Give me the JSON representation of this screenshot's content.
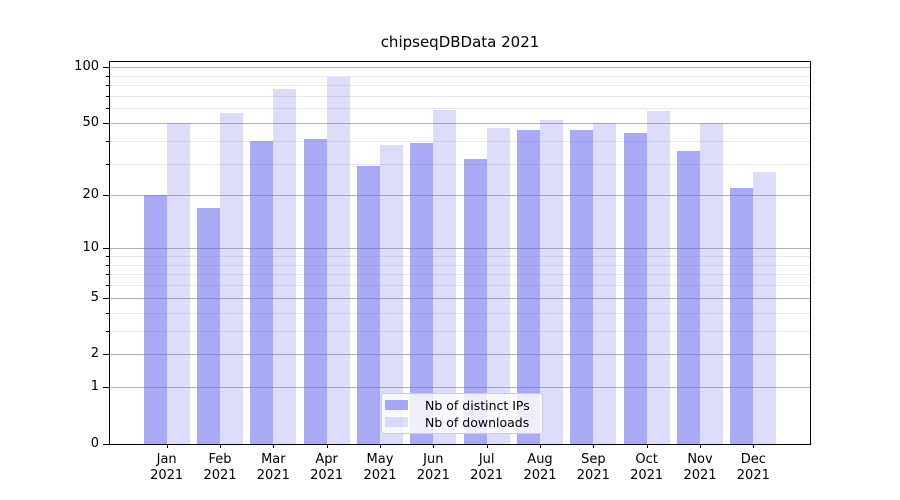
{
  "chart_data": {
    "type": "bar",
    "title": "chipseqDBData 2021",
    "months": [
      "Jan",
      "Feb",
      "Mar",
      "Apr",
      "May",
      "Jun",
      "Jul",
      "Aug",
      "Sep",
      "Oct",
      "Nov",
      "Dec"
    ],
    "year": "2021",
    "series": [
      {
        "name": "Nb of distinct IPs",
        "color": "rgba(112,112,240,0.6)",
        "values": [
          20,
          17,
          40,
          41,
          29,
          39,
          32,
          46,
          46,
          44,
          35,
          22
        ]
      },
      {
        "name": "Nb of downloads",
        "color": "rgba(112,112,240,0.24)",
        "values": [
          50,
          57,
          76,
          89,
          38,
          59,
          47,
          52,
          50,
          58,
          50,
          27
        ]
      }
    ],
    "yscale": "log10(1+y)",
    "y_major_ticks": [
      0,
      1,
      2,
      5,
      10,
      20,
      50,
      100
    ],
    "y_minor_gridlines": [
      3,
      4,
      6,
      7,
      8,
      9,
      30,
      40,
      60,
      70,
      80,
      90
    ],
    "ylim": [
      0,
      107
    ],
    "grid": "on",
    "legend_position": "lower center",
    "colors": {
      "major_grid": "#b0b0b0",
      "minor_grid": "#e8e8e8",
      "axis": "#000000",
      "text": "#000000"
    }
  }
}
